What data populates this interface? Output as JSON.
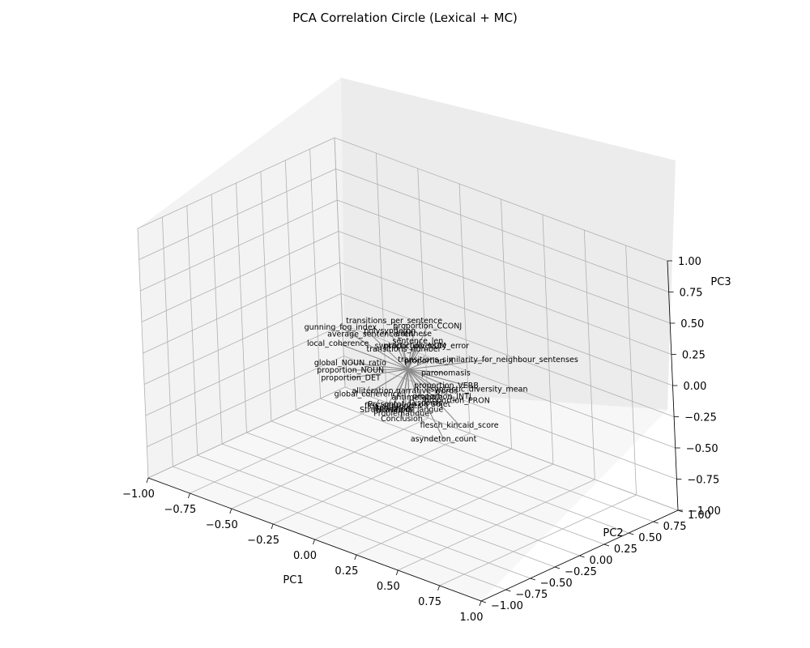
{
  "chart_data": {
    "type": "scatter",
    "projection": "3d",
    "title": "PCA Correlation Circle (Lexical + MC)",
    "xlabel": "PC1",
    "ylabel": "PC2",
    "zlabel": "PC3",
    "xlim": [
      -1,
      1
    ],
    "ylim": [
      -1,
      1
    ],
    "zlim": [
      -1,
      1
    ],
    "x_ticks": [
      "−1.00",
      "−0.75",
      "−0.50",
      "−0.25",
      "0.00",
      "0.25",
      "0.50",
      "0.75",
      "1.00"
    ],
    "y_ticks": [
      "−1.00",
      "−0.75",
      "−0.50",
      "−0.25",
      "0.00",
      "0.25",
      "0.50",
      "0.75",
      "1.00"
    ],
    "z_ticks": [
      "−1.00",
      "−0.75",
      "−0.50",
      "−0.25",
      "0.00",
      "0.25",
      "0.50",
      "0.75",
      "1.00"
    ],
    "grid": true,
    "vector_color": "#8a8a8a",
    "points": [
      {
        "label": "proportion_CCONJ",
        "x": 0.1,
        "y": 0.05,
        "z": 0.38
      },
      {
        "label": "transitions_per_sentence",
        "x": -0.12,
        "y": 0.08,
        "z": 0.3
      },
      {
        "label": "antithese",
        "x": 0.02,
        "y": 0.04,
        "z": 0.28
      },
      {
        "label": "polysyndeton",
        "x": -0.1,
        "y": 0.0,
        "z": 0.26
      },
      {
        "label": "syntactic_diversity_error",
        "x": 0.08,
        "y": 0.02,
        "z": 0.22
      },
      {
        "label": "sentence_len",
        "x": 0.05,
        "y": 0.03,
        "z": 0.24
      },
      {
        "label": "proportion_NUM",
        "x": 0.02,
        "y": 0.05,
        "z": 0.18
      },
      {
        "label": "transitions_similarity_for_neighbour_sentenses",
        "x": 0.4,
        "y": 0.15,
        "z": 0.22
      },
      {
        "label": "gunning_fog_index",
        "x": -0.4,
        "y": 0.0,
        "z": 0.14
      },
      {
        "label": "average_sentence_len",
        "x": -0.25,
        "y": 0.05,
        "z": 0.14
      },
      {
        "label": "transitions_number",
        "x": -0.05,
        "y": 0.05,
        "z": 0.12
      },
      {
        "label": "proportion_X",
        "x": 0.1,
        "y": 0.05,
        "z": 0.1
      },
      {
        "label": "paronomasis",
        "x": 0.2,
        "y": 0.05,
        "z": 0.05
      },
      {
        "label": "syntactic_diversity_mean",
        "x": 0.38,
        "y": 0.08,
        "z": 0.0
      },
      {
        "label": "local_coherence",
        "x": -0.42,
        "y": 0.0,
        "z": 0.0
      },
      {
        "label": "proportion_VERB",
        "x": 0.2,
        "y": 0.05,
        "z": -0.05
      },
      {
        "label": "proportion_PRON",
        "x": 0.28,
        "y": 0.02,
        "z": -0.12
      },
      {
        "label": "proportion_INTJ",
        "x": 0.2,
        "y": 0.0,
        "z": -0.12
      },
      {
        "label": "global_NOUN_ratio",
        "x": -0.35,
        "y": 0.0,
        "z": -0.12
      },
      {
        "label": "proportion_NOUN",
        "x": -0.35,
        "y": 0.0,
        "z": -0.18
      },
      {
        "label": "narrative_words",
        "x": 0.08,
        "y": 0.05,
        "z": -0.15
      },
      {
        "label": "antimetabole",
        "x": 0.05,
        "y": 0.0,
        "z": -0.2
      },
      {
        "label": "Discours",
        "x": 0.1,
        "y": 0.0,
        "z": -0.22
      },
      {
        "label": "proportion_DET",
        "x": -0.35,
        "y": 0.0,
        "z": -0.24
      },
      {
        "label": "allitération",
        "x": -0.22,
        "y": 0.0,
        "z": -0.28
      },
      {
        "label": "Présentation du Sujet",
        "x": 0.0,
        "y": 0.0,
        "z": -0.28
      },
      {
        "label": "flesch_kincaid_score",
        "x": 0.3,
        "y": 0.0,
        "z": -0.3
      },
      {
        "label": "global_coherence",
        "x": -0.25,
        "y": 0.0,
        "z": -0.32
      },
      {
        "label": "Niveau de langue",
        "x": 0.0,
        "y": 0.0,
        "z": -0.32
      },
      {
        "label": "flex_sentences",
        "x": -0.1,
        "y": 0.0,
        "z": -0.34
      },
      {
        "label": "Métaphore",
        "x": -0.1,
        "y": 0.0,
        "z": -0.36
      },
      {
        "label": "Problématique",
        "x": -0.05,
        "y": 0.0,
        "z": -0.38
      },
      {
        "label": "Structuration",
        "x": -0.15,
        "y": 0.0,
        "z": -0.4
      },
      {
        "label": "Conclusion",
        "x": -0.05,
        "y": 0.0,
        "z": -0.42
      },
      {
        "label": "asyndeton_count",
        "x": 0.2,
        "y": 0.0,
        "z": -0.46
      }
    ]
  }
}
